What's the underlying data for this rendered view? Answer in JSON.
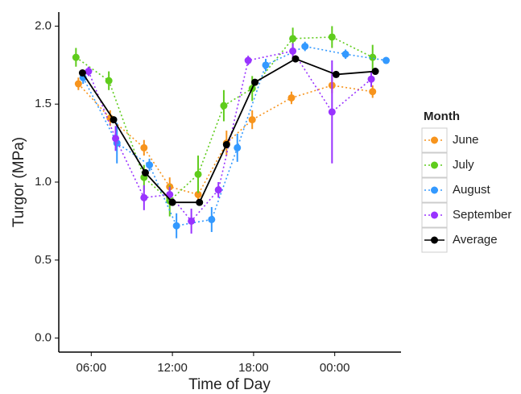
{
  "chart_data": {
    "type": "line",
    "xlabel": "Time of Day",
    "ylabel": "Turgor (MPa)",
    "xlim": [
      3.6,
      28.9
    ],
    "xticks": [
      {
        "value": 6,
        "label": "06:00"
      },
      {
        "value": 12,
        "label": "12:00"
      },
      {
        "value": 18,
        "label": "18:00"
      },
      {
        "value": 24,
        "label": "00:00"
      }
    ],
    "ylim": [
      -0.09,
      2.09
    ],
    "yticks": [
      {
        "value": 0,
        "label": "0.0"
      },
      0.5,
      {
        "value": 1,
        "label": "1.0"
      },
      1.5,
      {
        "value": 2,
        "label": "2.0"
      }
    ],
    "grid": false,
    "legend_title": "Month",
    "legend_position": "right",
    "series": [
      {
        "name": "June",
        "color": "#f7941d",
        "line_style": "dotted",
        "x": [
          5.05,
          7.4,
          9.9,
          11.8,
          13.9,
          16.0,
          17.9,
          20.8,
          23.8,
          26.8
        ],
        "values": [
          1.63,
          1.41,
          1.22,
          0.97,
          0.92,
          1.25,
          1.4,
          1.54,
          1.62,
          1.58
        ],
        "errors": [
          0.04,
          0.05,
          0.05,
          0.06,
          0.06,
          0.08,
          0.06,
          0.04,
          0.05,
          0.04
        ]
      },
      {
        "name": "July",
        "color": "#5fcc1c",
        "line_style": "dotted",
        "x": [
          4.87,
          7.3,
          9.9,
          11.8,
          13.9,
          15.8,
          17.9,
          20.9,
          23.8,
          26.8
        ],
        "values": [
          1.8,
          1.65,
          1.03,
          0.88,
          1.05,
          1.49,
          1.6,
          1.92,
          1.93,
          1.8
        ],
        "errors": [
          0.06,
          0.06,
          0.08,
          0.1,
          0.12,
          0.1,
          0.08,
          0.07,
          0.07,
          0.08
        ]
      },
      {
        "name": "August",
        "color": "#3399ff",
        "line_style": "dotted",
        "x": [
          5.4,
          7.9,
          10.3,
          12.3,
          14.9,
          16.8,
          18.9,
          21.8,
          24.8,
          27.8
        ],
        "values": [
          1.67,
          1.25,
          1.11,
          0.72,
          0.76,
          1.22,
          1.75,
          1.87,
          1.82,
          1.78
        ],
        "errors": [
          0.04,
          0.13,
          0.04,
          0.08,
          0.08,
          0.09,
          0.04,
          0.03,
          0.03,
          0.02
        ]
      },
      {
        "name": "September",
        "color": "#9933ff",
        "line_style": "dotted",
        "x": [
          5.8,
          7.8,
          9.9,
          11.8,
          13.4,
          15.4,
          17.6,
          20.9,
          23.8,
          26.7
        ],
        "values": [
          1.71,
          1.28,
          0.9,
          0.92,
          0.75,
          0.95,
          1.78,
          1.84,
          1.45,
          1.66
        ],
        "errors": [
          0.03,
          0.08,
          0.08,
          0.05,
          0.08,
          0.05,
          0.03,
          0.05,
          0.33,
          0.05
        ]
      },
      {
        "name": "Average",
        "color": "#000000",
        "line_style": "solid",
        "x": [
          5.35,
          7.65,
          10.0,
          12.0,
          14.0,
          16.0,
          18.1,
          21.1,
          24.1,
          27.0
        ],
        "values": [
          1.7,
          1.4,
          1.06,
          0.87,
          0.87,
          1.24,
          1.64,
          1.79,
          1.69,
          1.71
        ]
      }
    ]
  }
}
